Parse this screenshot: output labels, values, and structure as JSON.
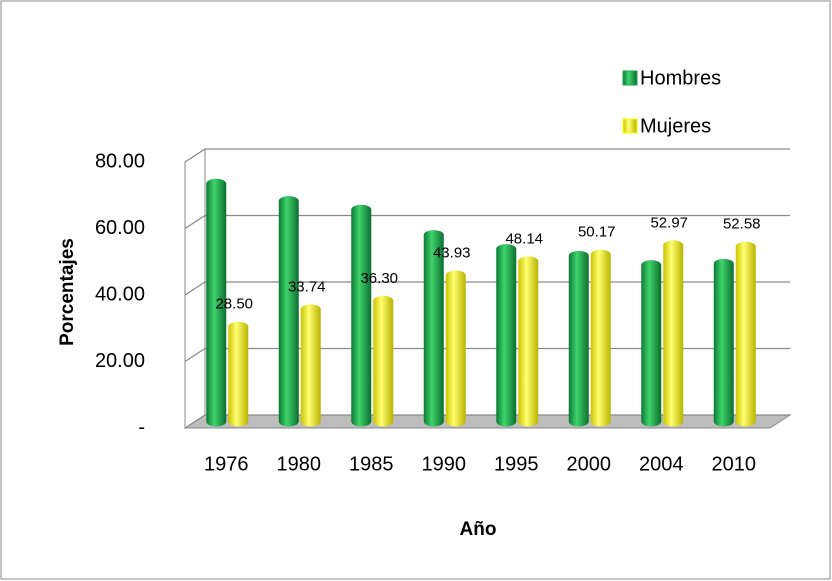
{
  "chart_data": {
    "type": "bar",
    "categories": [
      "1976",
      "1980",
      "1985",
      "1990",
      "1995",
      "2000",
      "2004",
      "2010"
    ],
    "series": [
      {
        "name": "Hombres",
        "color": "#1fa64b",
        "values": [
          71.5,
          66.26,
          63.7,
          56.07,
          51.86,
          49.83,
          47.03,
          47.42
        ]
      },
      {
        "name": "Mujeres",
        "color": "#ffff00",
        "values": [
          28.5,
          33.74,
          36.3,
          43.93,
          48.14,
          50.17,
          52.97,
          52.58
        ],
        "value_labels": [
          "28.50",
          "33.74",
          "36.30",
          "43.93",
          "48.14",
          "50.17",
          "52.97",
          "52.58"
        ]
      }
    ],
    "x_label": "Año",
    "y_label": "Porcentajes",
    "ylim": [
      0,
      80
    ],
    "yticks": [
      {
        "value": 0,
        "label": "-"
      },
      {
        "value": 20,
        "label": "20.00"
      },
      {
        "value": 40,
        "label": "40.00"
      },
      {
        "value": 60,
        "label": "60.00"
      },
      {
        "value": 80,
        "label": "80.00"
      }
    ],
    "grid": true,
    "legend": "top-right"
  }
}
